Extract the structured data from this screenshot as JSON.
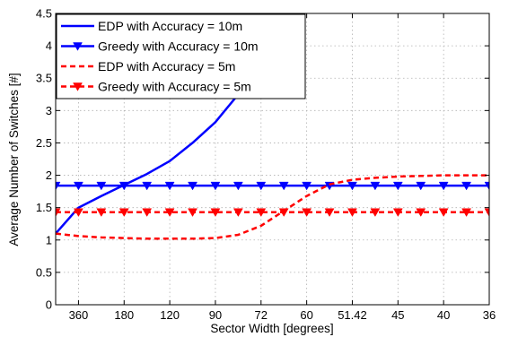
{
  "chart_data": {
    "type": "line",
    "title": "",
    "xlabel": "Sector Width [degrees]",
    "ylabel": "Average Number of Switches [#]",
    "x_tick_labels": [
      "360",
      "180",
      "120",
      "90",
      "72",
      "60",
      "51.42",
      "45",
      "40",
      "36"
    ],
    "xlim": [
      0.5,
      10
    ],
    "ylim": [
      0,
      4.5
    ],
    "y_tick_labels": [
      "0",
      "0.5",
      "1",
      "1.5",
      "2",
      "2.5",
      "3",
      "3.5",
      "4",
      "4.5"
    ],
    "grid": true,
    "legend_position": "top-left",
    "series": [
      {
        "name": "EDP with Accuracy = 10m",
        "color": "#0000ff",
        "style": "solid",
        "marker": "none",
        "x": [
          0.5,
          1.0,
          1.5,
          2.0,
          2.5,
          3.0,
          3.5,
          4.0,
          4.5,
          5.0,
          5.5
        ],
        "y": [
          1.1,
          1.5,
          1.68,
          1.85,
          2.02,
          2.22,
          2.5,
          2.82,
          3.25,
          3.8,
          4.5
        ]
      },
      {
        "name": "Greedy with Accuracy = 10m",
        "color": "#0000ff",
        "style": "solid",
        "marker": "triangle-down",
        "x": [
          0.5,
          1.0,
          1.5,
          2.0,
          2.5,
          3.0,
          3.5,
          4.0,
          4.5,
          5.0,
          5.5,
          6.0,
          6.5,
          7.0,
          7.5,
          8.0,
          8.5,
          9.0,
          9.5,
          10.0
        ],
        "y": [
          1.84,
          1.84,
          1.84,
          1.84,
          1.84,
          1.84,
          1.84,
          1.84,
          1.84,
          1.84,
          1.84,
          1.84,
          1.84,
          1.84,
          1.84,
          1.84,
          1.84,
          1.84,
          1.84,
          1.84
        ]
      },
      {
        "name": "EDP with Accuracy = 5m",
        "color": "#ff0000",
        "style": "dashed",
        "marker": "none",
        "x": [
          0.5,
          1.0,
          1.5,
          2.0,
          2.5,
          3.0,
          3.5,
          4.0,
          4.5,
          5.0,
          5.5,
          6.0,
          6.5,
          7.0,
          7.5,
          8.0,
          8.5,
          9.0,
          9.5,
          10.0
        ],
        "y": [
          1.1,
          1.06,
          1.04,
          1.03,
          1.02,
          1.02,
          1.02,
          1.03,
          1.08,
          1.22,
          1.45,
          1.68,
          1.86,
          1.93,
          1.96,
          1.98,
          1.99,
          2.0,
          2.0,
          2.0
        ]
      },
      {
        "name": "Greedy with Accuracy = 5m",
        "color": "#ff0000",
        "style": "dashed",
        "marker": "triangle-down",
        "x": [
          0.5,
          1.0,
          1.5,
          2.0,
          2.5,
          3.0,
          3.5,
          4.0,
          4.5,
          5.0,
          5.5,
          6.0,
          6.5,
          7.0,
          7.5,
          8.0,
          8.5,
          9.0,
          9.5,
          10.0
        ],
        "y": [
          1.43,
          1.43,
          1.43,
          1.43,
          1.43,
          1.43,
          1.43,
          1.43,
          1.43,
          1.43,
          1.43,
          1.43,
          1.43,
          1.43,
          1.43,
          1.43,
          1.43,
          1.43,
          1.43,
          1.43
        ]
      }
    ]
  }
}
